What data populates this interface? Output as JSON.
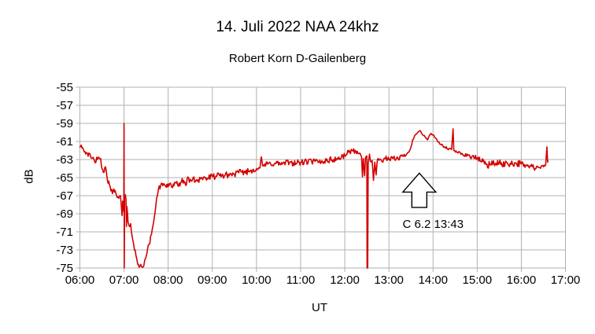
{
  "chart_data": {
    "type": "line",
    "title": "14. Juli 2022 NAA 24khz",
    "subtitle": "Robert Korn D-Gailenberg",
    "xlabel": "UT",
    "ylabel": "dB",
    "x_tick_labels": [
      "06:00",
      "07:00",
      "08:00",
      "09:00",
      "10:00",
      "11:00",
      "12:00",
      "13:00",
      "14:00",
      "15:00",
      "16:00",
      "17:00"
    ],
    "x_tick_hours": [
      6,
      7,
      8,
      9,
      10,
      11,
      12,
      13,
      14,
      15,
      16,
      17
    ],
    "y_ticks": [
      -55,
      -57,
      -59,
      -61,
      -63,
      -65,
      -67,
      -69,
      -71,
      -73,
      -75
    ],
    "x_range": [
      6,
      17
    ],
    "y_range": [
      -75,
      -55
    ],
    "grid": true,
    "legend": "none",
    "line_color": "#d40000",
    "grid_color": "#b0b0b0",
    "background_color": "#ffffff",
    "annotation": {
      "label": "C 6.2 13:43",
      "arrow_t": 13.69,
      "arrow_tip_db": -64.5,
      "arrow_head_base_db": -66.6,
      "arrow_stem_bottom_db": -68.3,
      "text_t": 14.0,
      "text_db": -69.4
    },
    "noise_seed": 42,
    "sample_step_hours": 0.0166,
    "series": [
      {
        "keypoints": [
          [
            6.0,
            -61.6,
            0.2
          ],
          [
            6.03,
            -61.4,
            0.15
          ],
          [
            6.08,
            -61.9,
            0.25
          ],
          [
            6.17,
            -62.3,
            0.3
          ],
          [
            6.25,
            -62.8,
            0.3
          ],
          [
            6.33,
            -63.1,
            0.35
          ],
          [
            6.4,
            -63.0,
            0.3
          ],
          [
            6.47,
            -62.9,
            0.15
          ],
          [
            6.5,
            -64.0,
            0.3
          ],
          [
            6.55,
            -64.4,
            0.35
          ],
          [
            6.58,
            -63.8,
            0.15
          ],
          [
            6.62,
            -65.2,
            0.3
          ],
          [
            6.67,
            -65.8,
            0.35
          ],
          [
            6.72,
            -66.3,
            0.4
          ],
          [
            6.78,
            -66.6,
            0.45
          ],
          [
            6.83,
            -67.0,
            0.45
          ],
          [
            6.88,
            -67.3,
            0.4
          ],
          [
            6.92,
            -67.0,
            0.3
          ],
          [
            6.955,
            -69.2,
            0.1
          ],
          [
            6.97,
            -67.6,
            0.1
          ],
          [
            6.995,
            -68.8,
            0
          ],
          [
            7.0,
            -59.0,
            0
          ],
          [
            7.005,
            -75.0,
            0
          ],
          [
            7.012,
            -67.2,
            0
          ],
          [
            7.03,
            -66.9,
            0.25
          ],
          [
            7.045,
            -67.4,
            0.15
          ],
          [
            7.055,
            -70.4,
            0
          ],
          [
            7.065,
            -68.2,
            0.15
          ],
          [
            7.09,
            -69.9,
            0.3
          ],
          [
            7.12,
            -70.4,
            0.25
          ],
          [
            7.15,
            -70.1,
            0.2
          ],
          [
            7.18,
            -71.4,
            0.3
          ],
          [
            7.22,
            -72.4,
            0.3
          ],
          [
            7.27,
            -73.6,
            0.35
          ],
          [
            7.31,
            -74.6,
            0.3
          ],
          [
            7.34,
            -74.9,
            0.25
          ],
          [
            7.38,
            -74.6,
            0.3
          ],
          [
            7.43,
            -74.9,
            0.2
          ],
          [
            7.47,
            -74.1,
            0.3
          ],
          [
            7.52,
            -73.3,
            0.3
          ],
          [
            7.57,
            -72.4,
            0.3
          ],
          [
            7.62,
            -71.3,
            0.3
          ],
          [
            7.66,
            -70.2,
            0.3
          ],
          [
            7.7,
            -68.9,
            0.25
          ],
          [
            7.74,
            -67.2,
            0.25
          ],
          [
            7.78,
            -66.3,
            0.25
          ],
          [
            7.83,
            -65.9,
            0.3
          ],
          [
            7.92,
            -65.8,
            0.4
          ],
          [
            8.0,
            -65.7,
            0.4
          ],
          [
            8.13,
            -65.9,
            0.45
          ],
          [
            8.25,
            -65.6,
            0.45
          ],
          [
            8.38,
            -65.5,
            0.45
          ],
          [
            8.5,
            -65.2,
            0.4
          ],
          [
            8.63,
            -65.3,
            0.4
          ],
          [
            8.75,
            -65.0,
            0.4
          ],
          [
            8.88,
            -65.1,
            0.35
          ],
          [
            9.0,
            -64.9,
            0.35
          ],
          [
            9.17,
            -64.8,
            0.35
          ],
          [
            9.33,
            -64.7,
            0.35
          ],
          [
            9.5,
            -64.6,
            0.35
          ],
          [
            9.67,
            -64.4,
            0.35
          ],
          [
            9.83,
            -64.3,
            0.35
          ],
          [
            10.0,
            -64.0,
            0.3
          ],
          [
            10.08,
            -63.9,
            0.25
          ],
          [
            10.11,
            -62.7,
            0.05
          ],
          [
            10.14,
            -63.7,
            0.25
          ],
          [
            10.25,
            -63.5,
            0.35
          ],
          [
            10.42,
            -63.4,
            0.35
          ],
          [
            10.58,
            -63.5,
            0.35
          ],
          [
            10.75,
            -63.3,
            0.35
          ],
          [
            10.92,
            -63.4,
            0.35
          ],
          [
            11.08,
            -63.3,
            0.35
          ],
          [
            11.25,
            -63.2,
            0.35
          ],
          [
            11.42,
            -63.3,
            0.35
          ],
          [
            11.58,
            -63.1,
            0.35
          ],
          [
            11.75,
            -63.0,
            0.35
          ],
          [
            11.92,
            -62.8,
            0.3
          ],
          [
            12.0,
            -62.5,
            0.3
          ],
          [
            12.08,
            -62.2,
            0.3
          ],
          [
            12.17,
            -62.0,
            0.3
          ],
          [
            12.25,
            -62.1,
            0.25
          ],
          [
            12.33,
            -62.3,
            0.2
          ],
          [
            12.38,
            -62.7,
            0.15
          ],
          [
            12.4,
            -64.9,
            0
          ],
          [
            12.42,
            -62.9,
            0.1
          ],
          [
            12.45,
            -64.8,
            0
          ],
          [
            12.47,
            -62.8,
            0.1
          ],
          [
            12.5,
            -62.6,
            0.05
          ],
          [
            12.505,
            -75.0,
            0
          ],
          [
            12.52,
            -75.0,
            0
          ],
          [
            12.53,
            -63.4,
            0.1
          ],
          [
            12.56,
            -62.4,
            0.1
          ],
          [
            12.58,
            -63.2,
            0.2
          ],
          [
            12.62,
            -63.1,
            0.2
          ],
          [
            12.65,
            -65.3,
            0
          ],
          [
            12.68,
            -63.3,
            0.2
          ],
          [
            12.71,
            -64.7,
            0
          ],
          [
            12.74,
            -63.0,
            0.25
          ],
          [
            12.83,
            -63.1,
            0.3
          ],
          [
            12.92,
            -62.9,
            0.3
          ],
          [
            13.0,
            -63.0,
            0.3
          ],
          [
            13.17,
            -62.9,
            0.3
          ],
          [
            13.33,
            -62.6,
            0.25
          ],
          [
            13.42,
            -62.3,
            0.2
          ],
          [
            13.47,
            -62.0,
            0.15
          ],
          [
            13.5,
            -61.6,
            0.1
          ],
          [
            13.54,
            -60.8,
            0.1
          ],
          [
            13.58,
            -60.4,
            0.1
          ],
          [
            13.62,
            -60.2,
            0.1
          ],
          [
            13.65,
            -60.0,
            0.1
          ],
          [
            13.7,
            -59.8,
            0.1
          ],
          [
            13.73,
            -60.0,
            0.1
          ],
          [
            13.77,
            -60.3,
            0.12
          ],
          [
            13.82,
            -60.5,
            0.12
          ],
          [
            13.88,
            -60.8,
            0.1
          ],
          [
            13.92,
            -60.3,
            0.1
          ],
          [
            13.95,
            -60.1,
            0.1
          ],
          [
            14.0,
            -60.3,
            0.1
          ],
          [
            14.05,
            -60.6,
            0.12
          ],
          [
            14.1,
            -61.0,
            0.12
          ],
          [
            14.17,
            -61.3,
            0.15
          ],
          [
            14.25,
            -61.6,
            0.15
          ],
          [
            14.33,
            -61.8,
            0.15
          ],
          [
            14.42,
            -61.9,
            0.1
          ],
          [
            14.455,
            -59.6,
            0
          ],
          [
            14.47,
            -62.0,
            0.1
          ],
          [
            14.55,
            -62.2,
            0.15
          ],
          [
            14.67,
            -62.4,
            0.2
          ],
          [
            14.83,
            -62.6,
            0.25
          ],
          [
            15.0,
            -62.9,
            0.3
          ],
          [
            15.13,
            -63.2,
            0.35
          ],
          [
            15.22,
            -63.5,
            0.45
          ],
          [
            15.3,
            -63.6,
            0.45
          ],
          [
            15.38,
            -63.4,
            0.4
          ],
          [
            15.5,
            -63.4,
            0.35
          ],
          [
            15.63,
            -63.5,
            0.4
          ],
          [
            15.75,
            -63.4,
            0.4
          ],
          [
            15.88,
            -63.4,
            0.4
          ],
          [
            16.0,
            -63.5,
            0.35
          ],
          [
            16.13,
            -63.7,
            0.3
          ],
          [
            16.25,
            -63.8,
            0.3
          ],
          [
            16.33,
            -64.0,
            0.3
          ],
          [
            16.42,
            -63.9,
            0.3
          ],
          [
            16.5,
            -63.8,
            0.25
          ],
          [
            16.55,
            -63.6,
            0.15
          ],
          [
            16.58,
            -61.6,
            0
          ],
          [
            16.595,
            -63.3,
            0
          ],
          [
            16.6,
            -63.1,
            0
          ]
        ]
      }
    ]
  }
}
